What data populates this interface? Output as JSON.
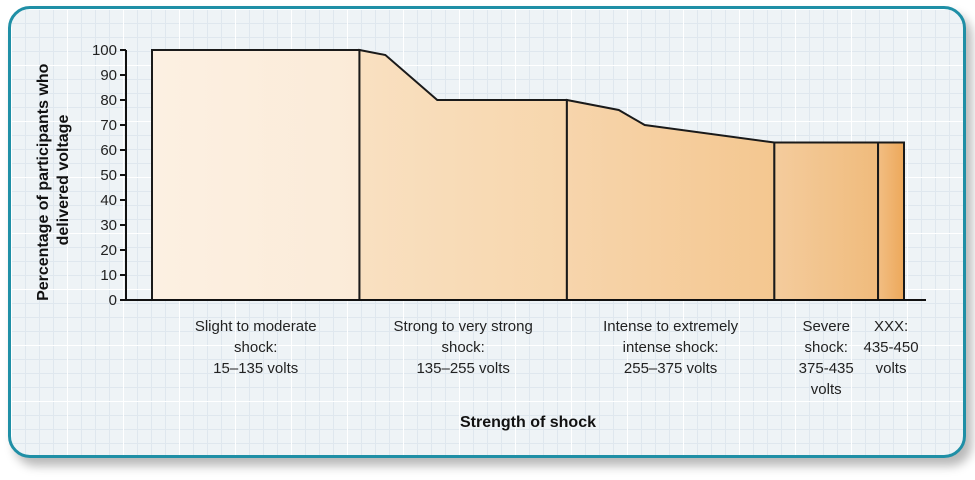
{
  "chart_data": {
    "type": "area",
    "title": "",
    "xlabel": "Strength of shock",
    "ylabel_lines": [
      "Percentage of participants who",
      "delivered voltage"
    ],
    "ylim": [
      0,
      100
    ],
    "yticks": [
      "0",
      "10",
      "20",
      "30",
      "40",
      "50",
      "60",
      "70",
      "80",
      "90",
      "100"
    ],
    "x": [
      15,
      135,
      150,
      180,
      255,
      285,
      300,
      375,
      435,
      450
    ],
    "x_unit": "volts",
    "y": [
      100,
      100,
      98,
      80,
      80,
      76,
      70,
      63,
      63,
      63
    ],
    "categories": [
      {
        "lines": [
          "Slight to moderate",
          "shock:",
          "15–135 volts"
        ],
        "range": [
          15,
          135
        ],
        "color": "#fbebd8"
      },
      {
        "lines": [
          "Strong to very strong",
          "shock:",
          "135–255 volts"
        ],
        "range": [
          135,
          255
        ],
        "color": "#f7d6ac"
      },
      {
        "lines": [
          "Intense to extremely",
          "intense shock:",
          "255–375 volts"
        ],
        "range": [
          255,
          375
        ],
        "color": "#f4c790"
      },
      {
        "lines": [
          "Severe",
          "shock:",
          "375-435",
          "volts"
        ],
        "range": [
          375,
          435
        ],
        "color": "#f0bb7c"
      },
      {
        "lines": [
          "XXX:",
          "435-450",
          "volts"
        ],
        "range": [
          435,
          450
        ],
        "color": "#eda85a"
      }
    ],
    "grid": false,
    "legend": "none"
  }
}
